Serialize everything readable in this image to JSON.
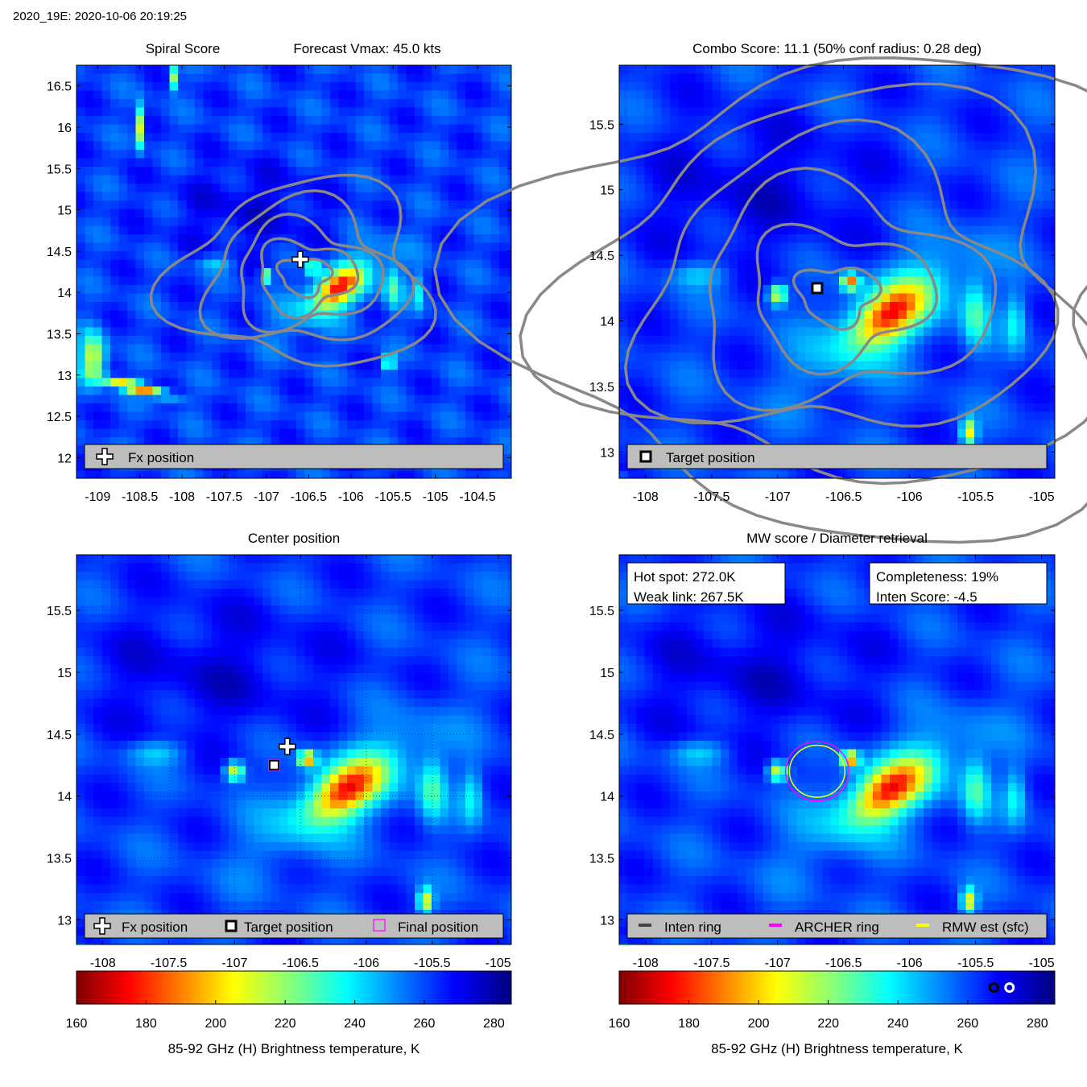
{
  "header": {
    "title": "2020_19E: 2020-10-06 20:19:25"
  },
  "colors": {
    "inten_ring": "#444444",
    "archer_ring": "#ff00ff",
    "rmw_ring": "#ffff00",
    "contour": "#888888",
    "legend_bg": "#bdbdbd"
  },
  "chart_data": [
    {
      "id": "spiral",
      "type": "heatmap",
      "title_left": "Spiral Score",
      "title_right": "Forecast Vmax: 45.0 kts",
      "xlim": [
        -109.25,
        -104.1
      ],
      "ylim": [
        11.75,
        16.75
      ],
      "xticks": [
        -109,
        -108.5,
        -108,
        -107.5,
        -107,
        -106.5,
        -106,
        -105.5,
        -105,
        -104.5
      ],
      "xtick_labels": [
        "-109",
        "-108.5",
        "-108",
        "-107.5",
        "-107",
        "-106.5",
        "-106",
        "-105.5",
        "-105",
        "-104.5"
      ],
      "yticks": [
        12,
        12.5,
        13,
        13.5,
        14,
        14.5,
        15,
        15.5,
        16,
        16.5
      ],
      "ytick_labels": [
        "12",
        "12.5",
        "13",
        "13.5",
        "14",
        "14.5",
        "15",
        "15.5",
        "16",
        "16.5"
      ],
      "markers": [
        {
          "kind": "plus",
          "lon": -106.6,
          "lat": 14.4
        }
      ],
      "legend": [
        "Fx position"
      ],
      "contours": true
    },
    {
      "id": "combo",
      "type": "heatmap",
      "title": "Combo Score: 11.1  (50% conf radius: 0.28 deg)",
      "xlim": [
        -108.2,
        -104.9
      ],
      "ylim": [
        12.8,
        15.95
      ],
      "xticks": [
        -108,
        -107.5,
        -107,
        -106.5,
        -106,
        -105.5,
        -105
      ],
      "xtick_labels": [
        "-108",
        "-107.5",
        "-107",
        "-106.5",
        "-106",
        "-105.5",
        "-105"
      ],
      "yticks": [
        13,
        13.5,
        14,
        14.5,
        15,
        15.5
      ],
      "ytick_labels": [
        "13",
        "13.5",
        "14",
        "14.5",
        "15",
        "15.5"
      ],
      "markers": [
        {
          "kind": "square",
          "lon": -106.7,
          "lat": 14.25
        }
      ],
      "legend": [
        "Target position"
      ],
      "contours": true
    },
    {
      "id": "center",
      "type": "heatmap",
      "title": "Center position",
      "xlim": [
        -108.2,
        -104.9
      ],
      "ylim": [
        12.8,
        15.95
      ],
      "xticks": [
        -108,
        -107.5,
        -107,
        -106.5,
        -106,
        -105.5,
        -105
      ],
      "xtick_labels": [
        "-108",
        "-107.5",
        "-107",
        "-106.5",
        "-106",
        "-105.5",
        "-105"
      ],
      "yticks": [
        13,
        13.5,
        14,
        14.5,
        15,
        15.5
      ],
      "ytick_labels": [
        "13",
        "13.5",
        "14",
        "14.5",
        "15",
        "15.5"
      ],
      "markers": [
        {
          "kind": "plus",
          "lon": -106.6,
          "lat": 14.4
        },
        {
          "kind": "square",
          "lon": -106.7,
          "lat": 14.25
        },
        {
          "kind": "magenta-square",
          "lon": -106.7,
          "lat": 14.25
        }
      ],
      "legend": [
        "Fx position",
        "Target position",
        "Final position"
      ],
      "grid": true
    },
    {
      "id": "mw",
      "type": "heatmap",
      "title": "MW score / Diameter retrieval",
      "xlim": [
        -108.2,
        -104.9
      ],
      "ylim": [
        12.8,
        15.95
      ],
      "xticks": [
        -108,
        -107.5,
        -107,
        -106.5,
        -106,
        -105.5,
        -105
      ],
      "xtick_labels": [
        "-108",
        "-107.5",
        "-107",
        "-106.5",
        "-106",
        "-105.5",
        "-105"
      ],
      "yticks": [
        13,
        13.5,
        14,
        14.5,
        15,
        15.5
      ],
      "ytick_labels": [
        "13",
        "13.5",
        "14",
        "14.5",
        "15",
        "15.5"
      ],
      "info_left": [
        "Hot spot: 272.0K",
        "Weak link: 267.5K"
      ],
      "info_right": [
        "Completeness: 19%",
        "Inten Score: -4.5"
      ],
      "rings": [
        {
          "name": "ARCHER ring",
          "lon": -106.7,
          "lat": 14.2,
          "radius_deg": 0.24
        },
        {
          "name": "RMW est (sfc)",
          "lon": -106.7,
          "lat": 14.2,
          "radius_deg": 0.21
        }
      ],
      "legend": [
        "Inten ring",
        "ARCHER ring",
        "RMW est (sfc)"
      ]
    }
  ],
  "colorbars": [
    {
      "ticks": [
        160,
        180,
        200,
        220,
        240,
        260,
        280
      ],
      "label": "85-92 GHz (H) Brightness temperature, K",
      "range": [
        160,
        285
      ]
    },
    {
      "ticks": [
        160,
        180,
        200,
        220,
        240,
        260,
        280
      ],
      "label": "85-92 GHz (H) Brightness temperature, K",
      "range": [
        160,
        285
      ],
      "markers": [
        {
          "value": 267.5,
          "ring": "#000000"
        },
        {
          "value": 272.0,
          "ring": "#ffffff"
        }
      ]
    }
  ]
}
